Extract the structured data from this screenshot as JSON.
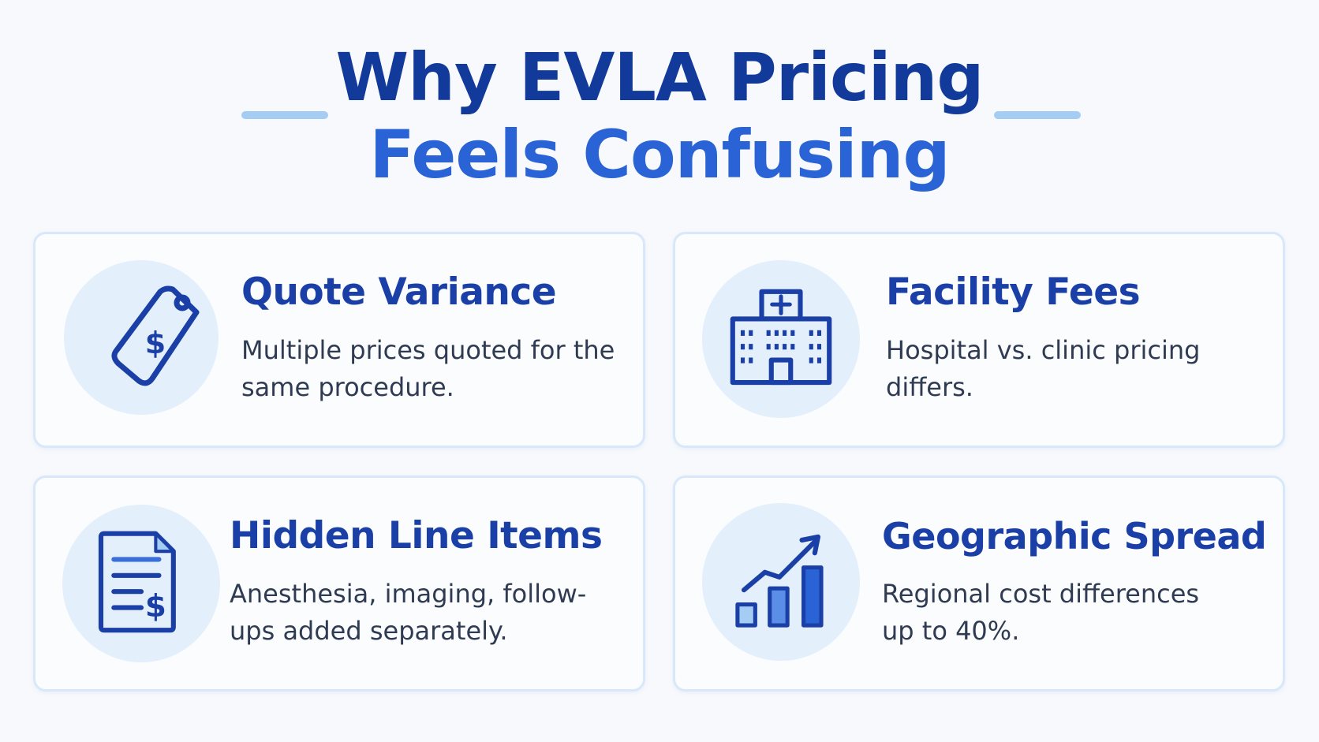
{
  "title": {
    "line1": "Why EVLA Pricing",
    "line2": "Feels Confusing"
  },
  "cards": [
    {
      "title": "Quote Variance",
      "description": "Multiple prices quoted for the same procedure.",
      "icon": "price-tag-icon"
    },
    {
      "title": "Facility Fees",
      "description": "Hospital vs. clinic pricing differs.",
      "icon": "hospital-icon"
    },
    {
      "title": "Hidden Line Items",
      "description": "Anesthesia, imaging, follow-ups added separately.",
      "icon": "invoice-document-icon"
    },
    {
      "title": "Geographic Spread",
      "description": "Regional cost differences up to 40%.",
      "icon": "trending-chart-icon"
    }
  ],
  "colors": {
    "title_dark": "#123a9a",
    "title_accent": "#2a63d6",
    "card_title": "#1a3fa6",
    "icon_stroke": "#1a3fa6",
    "icon_circle": "#e4effc",
    "accent_line": "#a5cdf3"
  }
}
